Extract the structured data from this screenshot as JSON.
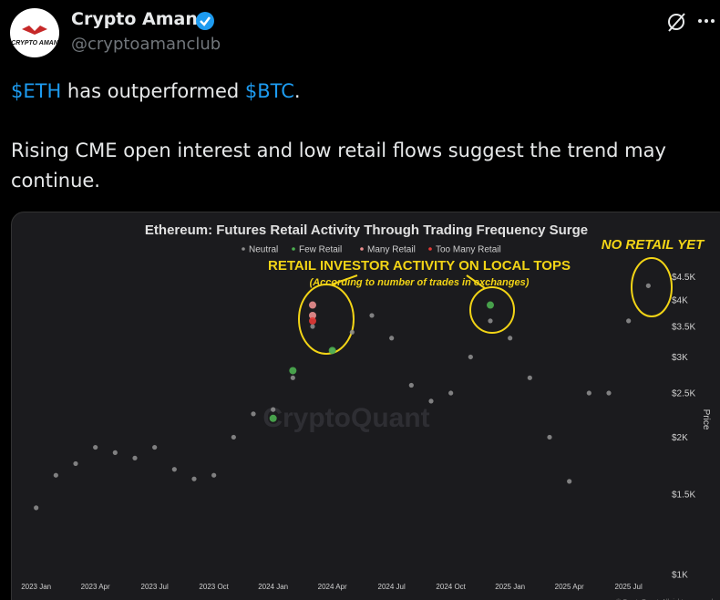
{
  "header": {
    "name": "Crypto Aman",
    "handle": "@cryptoamanclub",
    "avatar_text": "CRYPTO AMAN"
  },
  "post": {
    "line1": [
      "$ETH",
      " has outperformed ",
      "$BTC",
      "."
    ],
    "paragraph2": "Rising CME open interest and low retail flows suggest the trend may continue."
  },
  "chart_data": {
    "type": "scatter",
    "title": "Ethereum: Futures Retail Activity Through Trading Frequency Surge",
    "annotations": [
      "RETAIL INVESTOR ACTIVITY ON LOCAL TOPS",
      "(According to number of trades in exchanges)",
      "NO RETAIL YET"
    ],
    "watermark": "CryptoQuant",
    "copyright": "© CryptoQuant. All rights reserved",
    "y_label": "Price",
    "log_y": true,
    "xlim": [
      "2022-12",
      "2025-09"
    ],
    "ylim": [
      950,
      4900
    ],
    "xticks": [
      {
        "value": "2023-01",
        "label": "2023 Jan"
      },
      {
        "value": "2023-04",
        "label": "2023 Apr"
      },
      {
        "value": "2023-07",
        "label": "2023 Jul"
      },
      {
        "value": "2023-10",
        "label": "2023 Oct"
      },
      {
        "value": "2024-01",
        "label": "2024 Jan"
      },
      {
        "value": "2024-04",
        "label": "2024 Apr"
      },
      {
        "value": "2024-07",
        "label": "2024 Jul"
      },
      {
        "value": "2024-10",
        "label": "2024 Oct"
      },
      {
        "value": "2025-01",
        "label": "2025 Jan"
      },
      {
        "value": "2025-04",
        "label": "2025 Apr"
      },
      {
        "value": "2025-07",
        "label": "2025 Jul"
      }
    ],
    "yticks": [
      {
        "value": 1000,
        "label": "$1K"
      },
      {
        "value": 1500,
        "label": "$1.5K"
      },
      {
        "value": 2000,
        "label": "$2K"
      },
      {
        "value": 2500,
        "label": "$2.5K"
      },
      {
        "value": 3000,
        "label": "$3K"
      },
      {
        "value": 3500,
        "label": "$3.5K"
      },
      {
        "value": 4000,
        "label": "$4K"
      },
      {
        "value": 4500,
        "label": "$4.5K"
      }
    ],
    "series": [
      {
        "name": "Neutral",
        "color": "#8c8c8c",
        "x": [
          "2023-01",
          "2023-02",
          "2023-03",
          "2023-04",
          "2023-05",
          "2023-06",
          "2023-07",
          "2023-08",
          "2023-09",
          "2023-10",
          "2023-11",
          "2023-12",
          "2024-01",
          "2024-02",
          "2024-03",
          "2024-04",
          "2024-05",
          "2024-06",
          "2024-07",
          "2024-08",
          "2024-09",
          "2024-10",
          "2024-11",
          "2024-12",
          "2025-01",
          "2025-02",
          "2025-03",
          "2025-04",
          "2025-05",
          "2025-06",
          "2025-07",
          "2025-08"
        ],
        "values": [
          1400,
          1650,
          1750,
          1900,
          1850,
          1800,
          1900,
          1700,
          1620,
          1650,
          2000,
          2250,
          2300,
          2700,
          3500,
          3100,
          3400,
          3700,
          3300,
          2600,
          2400,
          2500,
          3000,
          3600,
          3300,
          2700,
          2000,
          1600,
          2500,
          2500,
          3600,
          4300
        ]
      },
      {
        "name": "Few Retail",
        "color": "#4caf50",
        "x": [
          "2024-01",
          "2024-02",
          "2024-04",
          "2024-12"
        ],
        "values": [
          2200,
          2800,
          3100,
          3900
        ]
      },
      {
        "name": "Many Retail",
        "color": "#ec8f8f",
        "x": [
          "2024-03",
          "2024-03"
        ],
        "values": [
          3900,
          3700
        ]
      },
      {
        "name": "Too Many Retail",
        "color": "#e53935",
        "x": [
          "2024-03"
        ],
        "values": [
          3600
        ]
      }
    ]
  }
}
